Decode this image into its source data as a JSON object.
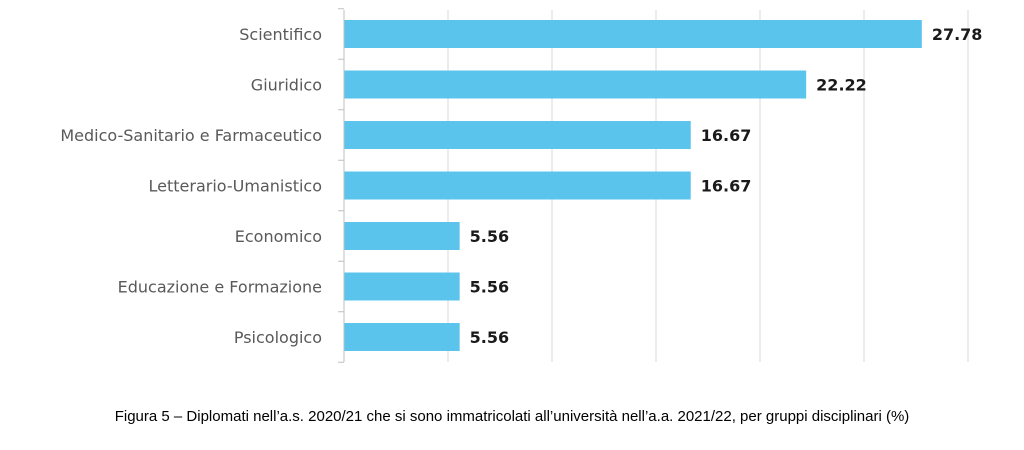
{
  "chart_data": {
    "type": "bar",
    "orientation": "horizontal",
    "categories": [
      "Scientifico",
      "Giuridico",
      "Medico-Sanitario e Farmaceutico",
      "Letterario-Umanistico",
      "Economico",
      "Educazione e Formazione",
      "Psicologico"
    ],
    "values": [
      27.78,
      22.22,
      16.67,
      16.67,
      5.56,
      5.56,
      5.56
    ],
    "value_labels": [
      "27.78",
      "22.22",
      "16.67",
      "16.67",
      "5.56",
      "5.56",
      "5.56"
    ],
    "xlim": [
      0,
      30
    ],
    "grid": true,
    "legend": "none",
    "bar_color": "#5bc4ec",
    "grid_color": "#d9d9d9"
  },
  "caption": "Figura 5 – Diplomati nell’a.s. 2020/21 che si sono immatricolati all’università nell’a.a. 2021/22, per gruppi disciplinari (%)"
}
